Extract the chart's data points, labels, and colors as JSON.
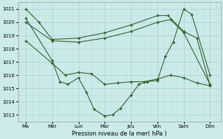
{
  "title": "Pression niveau de la mer( hPa )",
  "bg_color": "#cceaea",
  "grid_color_major": "#aad4d4",
  "grid_color_minor": "#bbdddd",
  "line_color": "#2d6020",
  "ylim": [
    1012.5,
    1021.5
  ],
  "yticks": [
    1013,
    1014,
    1015,
    1016,
    1017,
    1018,
    1019,
    1020,
    1021
  ],
  "x_labels": [
    "Ma",
    "Mer",
    "Lun",
    "Mar",
    "Jeu",
    "Ven",
    "Sam",
    "Dim"
  ],
  "x_positions": [
    0,
    1,
    2,
    3,
    4,
    5,
    6,
    7
  ],
  "series1": {
    "x": [
      0,
      0.5,
      1,
      2,
      3,
      4,
      5,
      5.4,
      6,
      6.5,
      7
    ],
    "y": [
      1021,
      1020,
      1018.7,
      1018.8,
      1019.2,
      1019.8,
      1020.5,
      1020.5,
      1019.3,
      1018.8,
      1015.2
    ]
  },
  "series2": {
    "x": [
      0,
      1,
      2,
      3,
      4,
      5,
      5.5,
      6,
      7
    ],
    "y": [
      1020,
      1018.6,
      1018.5,
      1018.8,
      1019.3,
      1020.0,
      1020.2,
      1019.2,
      1015.3
    ]
  },
  "series3": {
    "x": [
      0,
      1,
      1.3,
      1.6,
      2,
      2.3,
      2.6,
      3,
      3.3,
      3.6,
      4,
      4.3,
      4.6,
      5,
      5.3,
      5.6,
      6,
      6.3,
      7
    ],
    "y": [
      1020.3,
      1017.1,
      1015.5,
      1015.3,
      1015.8,
      1014.7,
      1013.4,
      1012.9,
      1013.0,
      1013.5,
      1014.5,
      1015.3,
      1015.5,
      1015.6,
      1017.4,
      1018.5,
      1021.0,
      1020.6,
      1016.0
    ]
  },
  "series4": {
    "x": [
      0,
      1,
      1.5,
      2,
      2.5,
      3,
      3.5,
      4,
      4.5,
      5,
      5.5,
      6,
      6.5,
      7
    ],
    "y": [
      1018.6,
      1016.9,
      1016.0,
      1016.2,
      1016.1,
      1015.3,
      1015.4,
      1015.5,
      1015.5,
      1015.7,
      1016.0,
      1015.8,
      1015.4,
      1015.2
    ]
  }
}
